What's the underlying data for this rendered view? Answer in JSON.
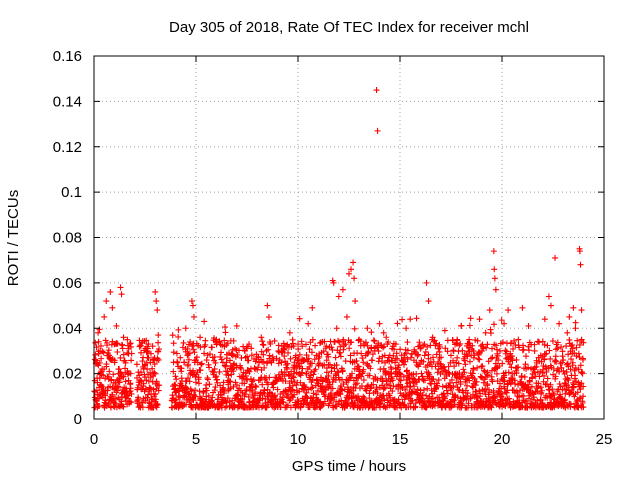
{
  "chart_data": {
    "type": "scatter",
    "title": "Day 305 of 2018, Rate Of TEC Index for receiver mchl",
    "xlabel": "GPS time / hours",
    "ylabel": "ROTI / TECUs",
    "xlim": [
      0,
      25
    ],
    "ylim": [
      0,
      0.16
    ],
    "xticks": [
      0,
      5,
      10,
      15,
      20,
      25
    ],
    "xtick_labels": [
      "0",
      "5",
      "10",
      "15",
      "20",
      "25"
    ],
    "yticks": [
      0,
      0.02,
      0.04,
      0.06,
      0.08,
      0.1,
      0.12,
      0.14,
      0.16
    ],
    "ytick_labels": [
      "0",
      "0.02",
      "0.04",
      "0.06",
      "0.08",
      "0.1",
      "0.12",
      "0.14",
      "0.16"
    ],
    "grid": true,
    "marker": "+",
    "color": "#ff0000",
    "series": [
      {
        "name": "ROTI",
        "note": "Dense band of several thousand points roughly between 0.005 and 0.035 TECU/s across 0-24 h; representative points plus outliers listed",
        "points": [
          [
            0.05,
            0.012
          ],
          [
            0.1,
            0.025
          ],
          [
            0.15,
            0.018
          ],
          [
            0.2,
            0.038
          ],
          [
            0.25,
            0.009
          ],
          [
            0.3,
            0.03
          ],
          [
            0.35,
            0.015
          ],
          [
            0.4,
            0.022
          ],
          [
            0.5,
            0.045
          ],
          [
            0.55,
            0.011
          ],
          [
            0.6,
            0.052
          ],
          [
            0.7,
            0.028
          ],
          [
            0.8,
            0.056
          ],
          [
            0.85,
            0.017
          ],
          [
            0.9,
            0.049
          ],
          [
            1.0,
            0.033
          ],
          [
            1.1,
            0.041
          ],
          [
            1.2,
            0.02
          ],
          [
            1.3,
            0.058
          ],
          [
            1.35,
            0.055
          ],
          [
            1.45,
            0.036
          ],
          [
            1.6,
            0.012
          ],
          [
            1.7,
            0.031
          ],
          [
            1.8,
            0.02
          ],
          [
            2.2,
            0.015
          ],
          [
            2.5,
            0.024
          ],
          [
            2.6,
            0.03
          ],
          [
            2.8,
            0.011
          ],
          [
            2.9,
            0.019
          ],
          [
            3.0,
            0.056
          ],
          [
            3.05,
            0.052
          ],
          [
            3.1,
            0.048
          ],
          [
            3.15,
            0.037
          ],
          [
            3.9,
            0.025
          ],
          [
            4.0,
            0.012
          ],
          [
            4.3,
            0.018
          ],
          [
            4.5,
            0.04
          ],
          [
            4.7,
            0.029
          ],
          [
            4.8,
            0.052
          ],
          [
            4.85,
            0.05
          ],
          [
            4.9,
            0.045
          ],
          [
            5.0,
            0.026
          ],
          [
            5.2,
            0.036
          ],
          [
            5.4,
            0.043
          ],
          [
            5.5,
            0.015
          ],
          [
            5.8,
            0.021
          ],
          [
            6.0,
            0.035
          ],
          [
            6.2,
            0.012
          ],
          [
            6.5,
            0.025
          ],
          [
            6.8,
            0.028
          ],
          [
            7.0,
            0.041
          ],
          [
            7.3,
            0.018
          ],
          [
            7.6,
            0.033
          ],
          [
            7.9,
            0.022
          ],
          [
            8.2,
            0.036
          ],
          [
            8.5,
            0.05
          ],
          [
            8.8,
            0.026
          ],
          [
            9.0,
            0.013
          ],
          [
            9.3,
            0.031
          ],
          [
            9.6,
            0.038
          ],
          [
            9.8,
            0.02
          ],
          [
            10.0,
            0.033
          ],
          [
            10.3,
            0.015
          ],
          [
            10.5,
            0.042
          ],
          [
            10.7,
            0.049
          ],
          [
            10.9,
            0.028
          ],
          [
            11.2,
            0.034
          ],
          [
            11.5,
            0.019
          ],
          [
            11.7,
            0.061
          ],
          [
            11.75,
            0.06
          ],
          [
            11.9,
            0.04
          ],
          [
            12.0,
            0.054
          ],
          [
            12.2,
            0.057
          ],
          [
            12.4,
            0.045
          ],
          [
            12.5,
            0.064
          ],
          [
            12.6,
            0.066
          ],
          [
            12.7,
            0.069
          ],
          [
            12.75,
            0.062
          ],
          [
            12.8,
            0.052
          ],
          [
            13.0,
            0.035
          ],
          [
            13.2,
            0.025
          ],
          [
            13.4,
            0.04
          ],
          [
            13.6,
            0.015
          ],
          [
            13.85,
            0.145
          ],
          [
            13.9,
            0.127
          ],
          [
            14.0,
            0.042
          ],
          [
            14.2,
            0.038
          ],
          [
            14.5,
            0.028
          ],
          [
            14.8,
            0.033
          ],
          [
            15.0,
            0.02
          ],
          [
            15.3,
            0.04
          ],
          [
            15.5,
            0.044
          ],
          [
            15.8,
            0.025
          ],
          [
            16.0,
            0.031
          ],
          [
            16.3,
            0.06
          ],
          [
            16.4,
            0.052
          ],
          [
            16.6,
            0.036
          ],
          [
            16.9,
            0.022
          ],
          [
            17.2,
            0.039
          ],
          [
            17.5,
            0.028
          ],
          [
            17.8,
            0.035
          ],
          [
            18.0,
            0.041
          ],
          [
            18.3,
            0.018
          ],
          [
            18.6,
            0.03
          ],
          [
            18.9,
            0.044
          ],
          [
            19.2,
            0.038
          ],
          [
            19.4,
            0.048
          ],
          [
            19.6,
            0.074
          ],
          [
            19.62,
            0.066
          ],
          [
            19.65,
            0.062
          ],
          [
            19.7,
            0.057
          ],
          [
            19.9,
            0.03
          ],
          [
            20.1,
            0.042
          ],
          [
            20.3,
            0.048
          ],
          [
            20.5,
            0.02
          ],
          [
            20.8,
            0.035
          ],
          [
            21.0,
            0.049
          ],
          [
            21.3,
            0.041
          ],
          [
            21.6,
            0.03
          ],
          [
            21.9,
            0.028
          ],
          [
            22.1,
            0.044
          ],
          [
            22.3,
            0.054
          ],
          [
            22.4,
            0.05
          ],
          [
            22.6,
            0.071
          ],
          [
            22.8,
            0.042
          ],
          [
            23.0,
            0.026
          ],
          [
            23.2,
            0.038
          ],
          [
            23.3,
            0.045
          ],
          [
            23.5,
            0.049
          ],
          [
            23.6,
            0.04
          ],
          [
            23.8,
            0.075
          ],
          [
            23.82,
            0.074
          ],
          [
            23.85,
            0.068
          ],
          [
            23.9,
            0.048
          ],
          [
            23.95,
            0.02
          ]
        ]
      }
    ]
  }
}
